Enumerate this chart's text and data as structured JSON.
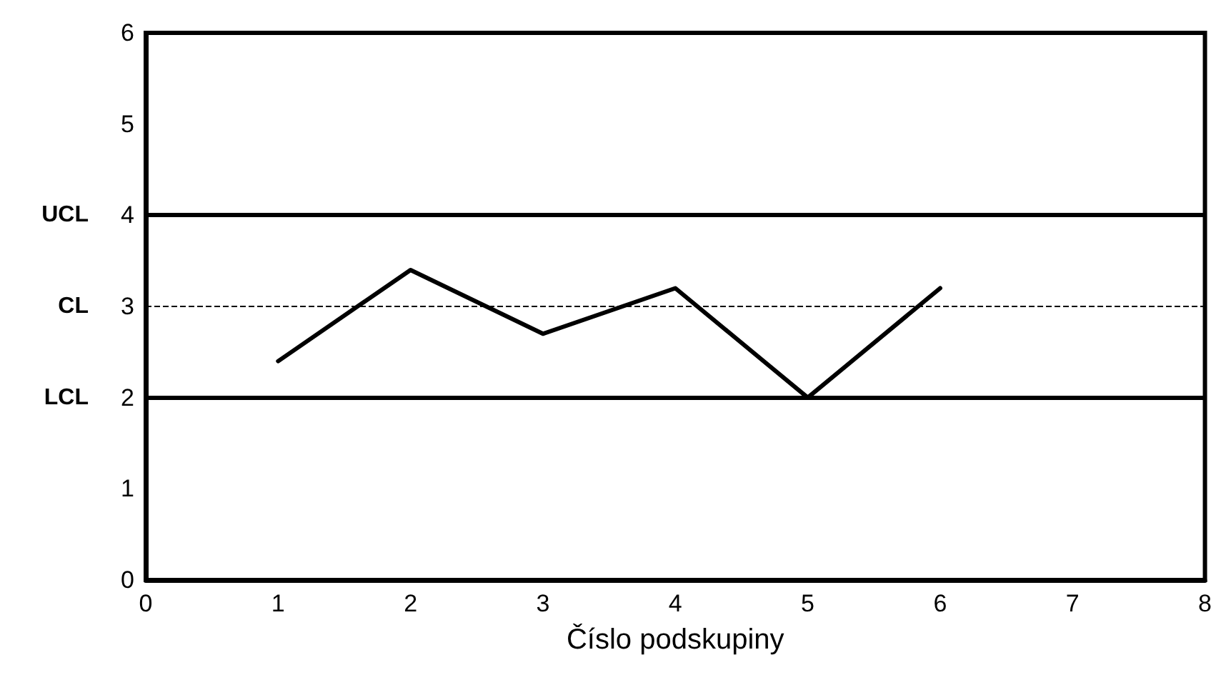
{
  "chart_data": {
    "type": "line",
    "xlabel": "Číslo podskupiny",
    "x": [
      1,
      2,
      3,
      4,
      5,
      6
    ],
    "values": [
      2.4,
      3.4,
      2.7,
      3.2,
      2.0,
      3.2
    ],
    "color": "#000000",
    "xlim": [
      0,
      8
    ],
    "xticks": [
      0,
      1,
      2,
      3,
      4,
      5,
      6,
      7,
      8
    ],
    "ylim": [
      0,
      6
    ],
    "yticks": [
      0,
      1,
      2,
      3,
      4,
      5,
      6
    ],
    "grid": false,
    "marker": "none",
    "line_style": "solid",
    "ref_lines": [
      {
        "axis": "y",
        "value": 4,
        "label": "UCL",
        "color": "#000000",
        "line_style": "solid"
      },
      {
        "axis": "y",
        "value": 3,
        "label": "CL",
        "color": "#000000",
        "line_style": "dashed"
      },
      {
        "axis": "y",
        "value": 2,
        "label": "LCL",
        "color": "#000000",
        "line_style": "solid"
      }
    ]
  }
}
